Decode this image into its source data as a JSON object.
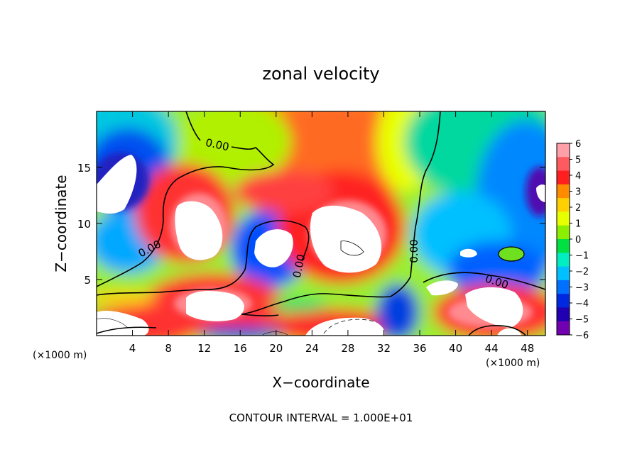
{
  "chart_data": {
    "type": "heatmap",
    "title": "zonal velocity",
    "xlabel": "X−coordinate",
    "ylabel": "Z−coordinate",
    "x_units_left": "(×1000 m)",
    "x_units_right": "(×1000 m)",
    "footer": "CONTOUR INTERVAL = 1.000E+01",
    "xlim": [
      0,
      50
    ],
    "ylim": [
      0,
      20
    ],
    "x_ticks": [
      4,
      8,
      12,
      16,
      20,
      24,
      28,
      32,
      36,
      40,
      44,
      48
    ],
    "y_ticks": [
      5,
      10,
      15
    ],
    "colorbar": {
      "levels": [
        6,
        5,
        4,
        3,
        2,
        1,
        0,
        -1,
        -2,
        -3,
        -4,
        -5,
        -6
      ],
      "labels": [
        "6",
        "5",
        "4",
        "3",
        "2",
        "1",
        "0",
        "−1",
        "−2",
        "−3",
        "−4",
        "−5",
        "−6"
      ],
      "colors": [
        "#ff9fa8",
        "#ff5a60",
        "#ff1f1f",
        "#ff8c00",
        "#ffd000",
        "#e8ff00",
        "#8cee00",
        "#00e040",
        "#00eec0",
        "#00c0ff",
        "#0070ff",
        "#0028e0",
        "#2000b0",
        "#7000b0"
      ]
    },
    "contour_labels": [
      "0.00",
      "0.00",
      "0.00",
      "0.00",
      "0.00"
    ]
  }
}
